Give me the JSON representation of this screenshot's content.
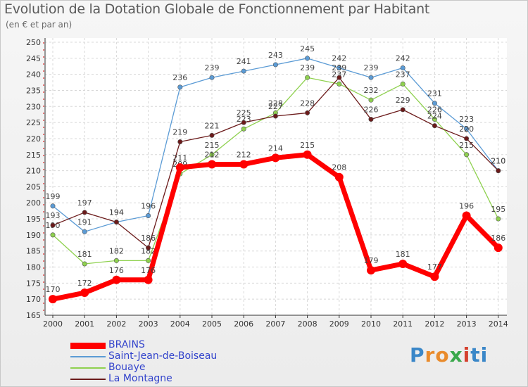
{
  "chart_data": {
    "type": "line",
    "title": "Evolution de la Dotation Globale de Fonctionnement par Habitant",
    "subtitle": "(en € et par an)",
    "xlabel": "",
    "ylabel": "",
    "ylim": [
      165,
      250
    ],
    "ytick_step": 5,
    "x": [
      "2000",
      "2001",
      "2002",
      "2003",
      "2004",
      "2005",
      "2006",
      "2007",
      "2008",
      "2009",
      "2010",
      "2011",
      "2012",
      "2013",
      "2014"
    ],
    "series": [
      {
        "name": "BRAINS",
        "color": "#ff0000",
        "values": [
          170,
          172,
          176,
          176,
          211,
          212,
          212,
          214,
          215,
          208,
          179,
          181,
          177,
          196,
          186
        ]
      },
      {
        "name": "Saint-Jean-de-Boiseau",
        "color": "#5b9bd5",
        "values": [
          199,
          191,
          194,
          196,
          236,
          239,
          241,
          243,
          245,
          242,
          239,
          242,
          231,
          223,
          210
        ]
      },
      {
        "name": "Bouaye",
        "color": "#8fd14f",
        "values": [
          190,
          181,
          182,
          182,
          209,
          215,
          223,
          228,
          239,
          237,
          232,
          237,
          226,
          215,
          195
        ]
      },
      {
        "name": "La Montagne",
        "color": "#6b1a1a",
        "values": [
          193,
          197,
          194,
          186,
          219,
          221,
          225,
          227,
          228,
          239,
          226,
          229,
          224,
          220,
          210
        ]
      }
    ]
  },
  "logo_text": "Proxiti",
  "logo_letters": [
    "P",
    "r",
    "o",
    "x",
    "i",
    "ti"
  ]
}
